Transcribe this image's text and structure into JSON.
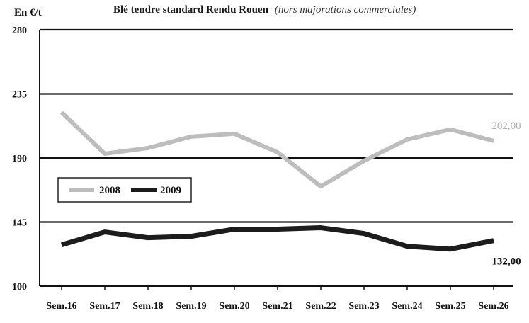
{
  "chart_data": {
    "type": "line",
    "title": "Blé tendre standard Rendu Rouen",
    "subtitle": "(hors majorations commerciales)",
    "ylabel": "En €/t",
    "xlabel": "",
    "ylim": [
      100,
      280
    ],
    "yticks": [
      "280",
      "235",
      "190",
      "145",
      "100"
    ],
    "ytick_values": [
      280,
      235,
      190,
      145,
      100
    ],
    "categories": [
      "Sem.16",
      "Sem.17",
      "Sem.18",
      "Sem.19",
      "Sem.20",
      "Sem.21",
      "Sem.22",
      "Sem.23",
      "Sem.24",
      "Sem.25",
      "Sem.26"
    ],
    "grid": "horizontal",
    "legend_position": "left, inside plot",
    "series": [
      {
        "name": "2008",
        "color": "#bdbdbd",
        "values": [
          222,
          193,
          197,
          205,
          207,
          194,
          170,
          188,
          203,
          210,
          202
        ],
        "end_label": "202,00"
      },
      {
        "name": "2009",
        "color": "#1c1c1c",
        "values": [
          129,
          138,
          134,
          135,
          140,
          140,
          141,
          137,
          128,
          126,
          132
        ],
        "end_label": "132,00"
      }
    ]
  }
}
